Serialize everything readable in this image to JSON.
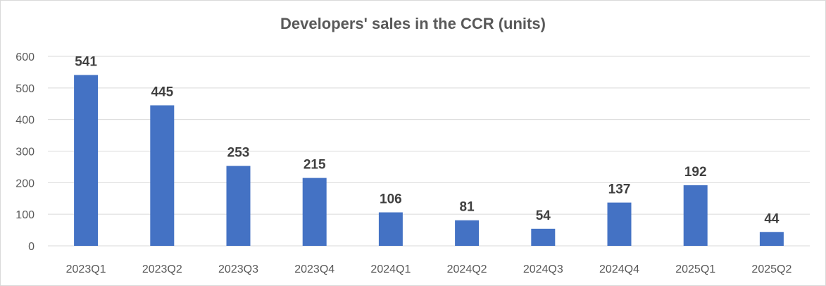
{
  "chart_data": {
    "type": "bar",
    "title": "Developers' sales in the CCR (units)",
    "categories": [
      "2023Q1",
      "2023Q2",
      "2023Q3",
      "2023Q4",
      "2024Q1",
      "2024Q2",
      "2024Q3",
      "2024Q4",
      "2025Q1",
      "2025Q2"
    ],
    "values": [
      541,
      445,
      253,
      215,
      106,
      81,
      54,
      137,
      192,
      44
    ],
    "data_labels": [
      "541",
      "445",
      "253",
      "215",
      "106",
      "81",
      "54",
      "137",
      "192",
      "44"
    ],
    "y_ticks": [
      "0",
      "100",
      "200",
      "300",
      "400",
      "500",
      "600"
    ],
    "ylim": [
      0,
      600
    ],
    "xlabel": "",
    "ylabel": "",
    "grid": true,
    "legend": "none",
    "bar_color": "#4472C4",
    "grid_color": "#d9d9d9"
  }
}
